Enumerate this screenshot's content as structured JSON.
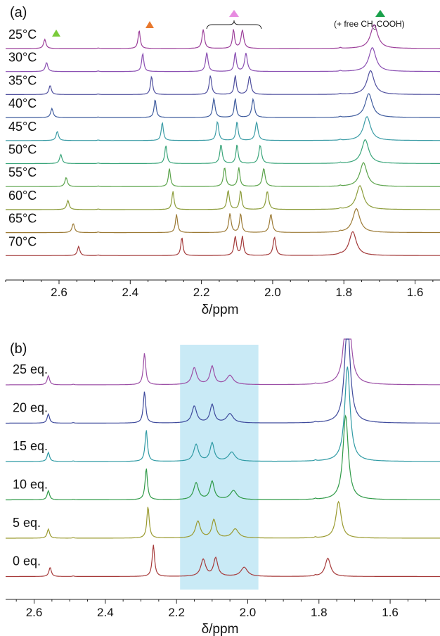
{
  "figure_label_a": "(a)",
  "figure_label_b": "(b)",
  "annotation": "(+ free CH3COOH)",
  "annotation_parts": {
    "pre": "(+ free CH",
    "sub": "3",
    "post": "COOH)"
  },
  "marker_colors": {
    "green": "#7acb3a",
    "orange": "#e8782d",
    "pink": "#e78be0",
    "darkgreen": "#1aa14b"
  },
  "chart_data": [
    {
      "type": "line",
      "panel": "(a)",
      "xlabel": "δ/ppm",
      "x_ticks": [
        "2.6",
        "2.4",
        "2.2",
        "2.0",
        "1.8",
        "1.6"
      ],
      "x_tick_values": [
        2.6,
        2.4,
        2.2,
        2.0,
        1.8,
        1.6
      ],
      "xlim": [
        2.75,
        1.53
      ],
      "x_reversed": true,
      "series": [
        {
          "name": "25°C",
          "color": "#9c3f9a",
          "peaks": [
            2.64,
            2.375,
            2.195,
            2.11,
            2.085,
            1.715
          ]
        },
        {
          "name": "30°C",
          "color": "#8a4fb2",
          "peaks": [
            2.635,
            2.365,
            2.185,
            2.105,
            2.075,
            1.72
          ]
        },
        {
          "name": "35°C",
          "color": "#4f4f9e",
          "peaks": [
            2.625,
            2.34,
            2.175,
            2.105,
            2.065,
            1.725
          ]
        },
        {
          "name": "40°C",
          "color": "#3f5c9e",
          "peaks": [
            2.62,
            2.33,
            2.165,
            2.105,
            2.055,
            1.73
          ]
        },
        {
          "name": "45°C",
          "color": "#3b9ca6",
          "peaks": [
            2.605,
            2.31,
            2.155,
            2.1,
            2.045,
            1.735
          ]
        },
        {
          "name": "50°C",
          "color": "#3aa57a",
          "peaks": [
            2.595,
            2.3,
            2.145,
            2.1,
            2.035,
            1.74
          ]
        },
        {
          "name": "55°C",
          "color": "#5aa34a",
          "peaks": [
            2.58,
            2.29,
            2.135,
            2.095,
            2.025,
            1.745
          ]
        },
        {
          "name": "60°C",
          "color": "#8c9c3a",
          "peaks": [
            2.575,
            2.28,
            2.125,
            2.09,
            2.015,
            1.755
          ]
        },
        {
          "name": "65°C",
          "color": "#9c7a35",
          "peaks": [
            2.56,
            2.27,
            2.12,
            2.09,
            2.005,
            1.765
          ]
        },
        {
          "name": "70°C",
          "color": "#a33a3a",
          "peaks": [
            2.545,
            2.255,
            2.105,
            2.085,
            1.995,
            1.775
          ]
        }
      ]
    },
    {
      "type": "line",
      "panel": "(b)",
      "xlabel": "δ/ppm",
      "x_ticks": [
        "2.6",
        "2.4",
        "2.2",
        "2.0",
        "1.8",
        "1.6"
      ],
      "x_tick_values": [
        2.6,
        2.4,
        2.2,
        2.0,
        1.8,
        1.6
      ],
      "xlim": [
        2.68,
        1.46
      ],
      "x_reversed": true,
      "highlight_range": [
        2.19,
        1.97
      ],
      "highlight_color": "#bfe6f4",
      "series": [
        {
          "name": "25 eq.",
          "color": "#9c4fa6",
          "peaks": [
            2.56,
            2.29,
            2.15,
            2.1,
            2.05,
            1.72
          ]
        },
        {
          "name": "20 eq.",
          "color": "#3e4a9c",
          "peaks": [
            2.56,
            2.29,
            2.15,
            2.1,
            2.05,
            1.72
          ]
        },
        {
          "name": "15 eq.",
          "color": "#2e9aa4",
          "peaks": [
            2.56,
            2.285,
            2.145,
            2.1,
            2.045,
            1.72
          ]
        },
        {
          "name": "10 eq.",
          "color": "#2f9a47",
          "peaks": [
            2.56,
            2.285,
            2.145,
            2.1,
            2.04,
            1.725
          ]
        },
        {
          "name": "5 eq.",
          "color": "#9a9a2f",
          "peaks": [
            2.56,
            2.28,
            2.14,
            2.095,
            2.035,
            1.745
          ]
        },
        {
          "name": "0 eq.",
          "color": "#a63a3a",
          "peaks": [
            2.555,
            2.265,
            2.125,
            2.09,
            2.01,
            1.775
          ]
        }
      ]
    }
  ]
}
